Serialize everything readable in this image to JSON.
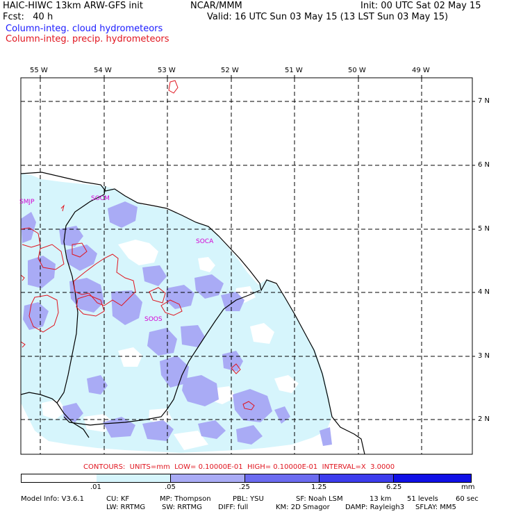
{
  "header": {
    "title_left": "HAIC-HIWC 13km ARW-GFS init",
    "title_center": "NCAR/MMM",
    "init": "Init: 00 UTC Sat 02 May 15",
    "fcst": "Fcst:   40 h",
    "valid": "Valid: 16 UTC Sun 03 May 15 (13 LST Sun 03 May 15)",
    "field_cloud": "Column-integ. cloud hydrometeors",
    "field_precip": "Column-integ. precip. hydrometeors"
  },
  "map": {
    "lon_labels": [
      "55 W",
      "54 W",
      "53 W",
      "52 W",
      "51 W",
      "50 W",
      "49 W"
    ],
    "lat_labels": [
      "7 N",
      "6 N",
      "5 N",
      "4 N",
      "3 N",
      "2 N"
    ],
    "stations": [
      "SMJP",
      "SOCM",
      "SOCA",
      "SOOS"
    ]
  },
  "contour_info": "CONTOURS:  UNITS=mm  LOW= 0.10000E-01  HIGH= 0.10000E-01  INTERVAL=X  3.0000",
  "colorbar": {
    "labels": [
      ".01",
      ".05",
      ".25",
      "1.25",
      "6.25"
    ],
    "units": "mm",
    "colors": [
      "#ffffff",
      "#d6f5fc",
      "#a9abf5",
      "#6b6bf0",
      "#3c3ced",
      "#1010e6"
    ]
  },
  "model_info": {
    "line1": [
      "Model Info: V3.6.1",
      "CU: KF",
      "MP: Thompson",
      "PBL: YSU",
      "SF: Noah LSM",
      "13 km",
      "51 levels",
      "60 sec"
    ],
    "line2": [
      "LW: RRTMG",
      "SW: RRTMG",
      "DIFF: full",
      "KM: 2D Smagor",
      "DAMP: Rayleigh3",
      "SFLAY: MM5"
    ]
  }
}
